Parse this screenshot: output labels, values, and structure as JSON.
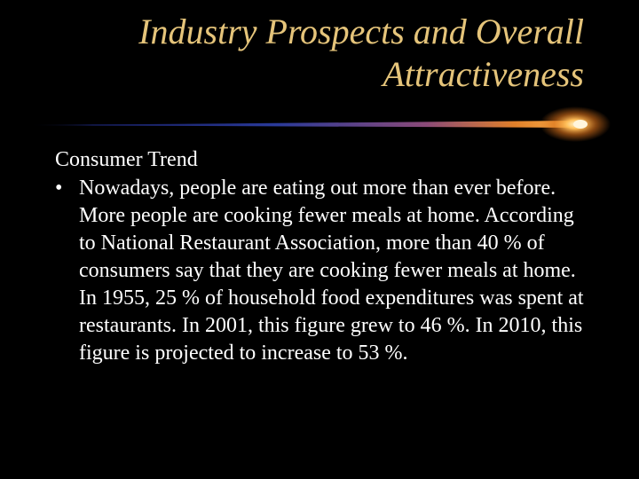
{
  "slide": {
    "title_line1": "Industry Prospects and Overall",
    "title_line2": "Attractiveness",
    "section_heading": "Consumer Trend",
    "bullet_symbol": "•",
    "bullet_text": "Nowadays, people are eating out more than ever before.  More people are cooking fewer meals at home.  According to National Restaurant Association, more than 40 % of consumers say that they are cooking fewer meals at home.  In 1955, 25 % of household food expenditures was spent at restaurants.  In 2001, this figure grew to 46 %.  In 2010, this figure is projected to increase to 53 %.",
    "colors": {
      "background": "#000000",
      "title": "#e5c47a",
      "body_text": "#ffffff",
      "divider_glow": "#ff9a1f",
      "divider_blue": "#2a3a9a"
    }
  }
}
